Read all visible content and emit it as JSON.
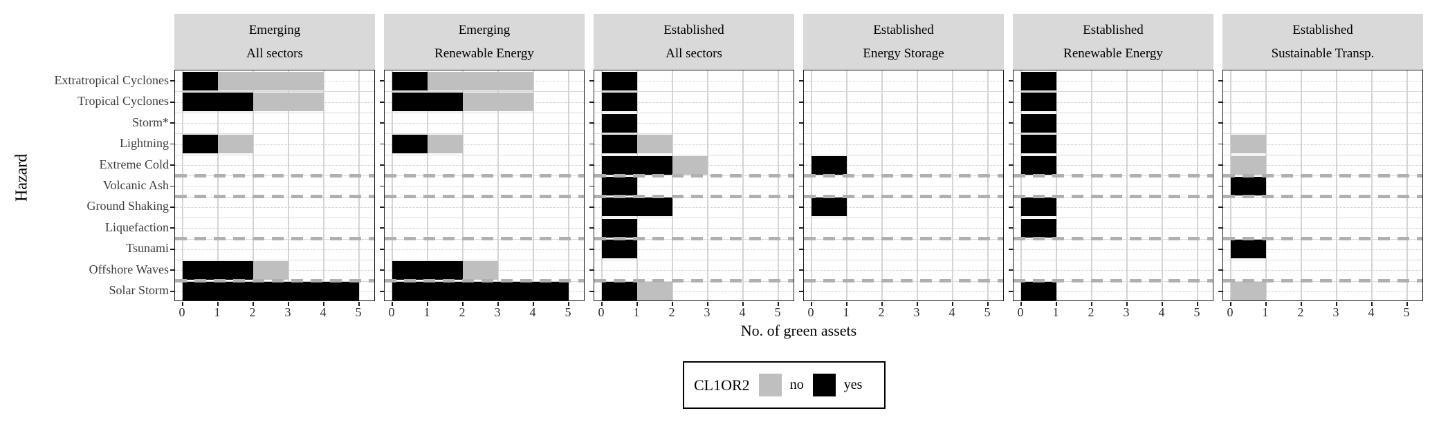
{
  "colors": {
    "bar_yes": "#000000",
    "bar_no": "#bfbfbf",
    "strip_bg": "#d9d9d9",
    "panel_border": "#1c1c1c",
    "grid": "#d4d4d4",
    "dashed_separator": "#b0b0b0",
    "axis_text": "#3d3d3d"
  },
  "chart_data": {
    "type": "bar",
    "orientation": "horizontal",
    "stacked": true,
    "title": "",
    "xlabel": "No. of green assets",
    "ylabel": "Hazard",
    "xlim": [
      0,
      5
    ],
    "x_ticks": [
      0,
      1,
      2,
      3,
      4,
      5
    ],
    "grid": true,
    "categories": [
      "Extratropical Cyclones",
      "Tropical Cyclones",
      "Storm*",
      "Lightning",
      "Extreme Cold",
      "Volcanic Ash",
      "Ground Shaking",
      "Liquefaction",
      "Tsunami",
      "Offshore Waves",
      "Solar Storm"
    ],
    "separators_after_categories": [
      "Extreme Cold",
      "Volcanic Ash",
      "Liquefaction",
      "Offshore Waves"
    ],
    "legend": {
      "title": "CL1OR2",
      "position": "bottom",
      "entries": [
        {
          "label": "no",
          "color": "#bfbfbf"
        },
        {
          "label": "yes",
          "color": "#000000"
        }
      ]
    },
    "facets": [
      {
        "maturity": "Emerging",
        "sector": "All sectors",
        "series": [
          {
            "name": "yes",
            "values": [
              1,
              2,
              0,
              1,
              0,
              0,
              0,
              0,
              0,
              2,
              5
            ]
          },
          {
            "name": "no",
            "values": [
              3,
              2,
              0,
              1,
              0,
              0,
              0,
              0,
              0,
              1,
              0
            ]
          }
        ]
      },
      {
        "maturity": "Emerging",
        "sector": "Renewable Energy",
        "series": [
          {
            "name": "yes",
            "values": [
              1,
              2,
              0,
              1,
              0,
              0,
              0,
              0,
              0,
              2,
              5
            ]
          },
          {
            "name": "no",
            "values": [
              3,
              2,
              0,
              1,
              0,
              0,
              0,
              0,
              0,
              1,
              0
            ]
          }
        ]
      },
      {
        "maturity": "Established",
        "sector": "All sectors",
        "series": [
          {
            "name": "yes",
            "values": [
              1,
              1,
              1,
              1,
              2,
              1,
              2,
              1,
              1,
              0,
              1
            ]
          },
          {
            "name": "no",
            "values": [
              0,
              0,
              0,
              1,
              1,
              0,
              0,
              0,
              0,
              0,
              1
            ]
          }
        ]
      },
      {
        "maturity": "Established",
        "sector": "Energy Storage",
        "series": [
          {
            "name": "yes",
            "values": [
              0,
              0,
              0,
              0,
              1,
              0,
              1,
              0,
              0,
              0,
              0
            ]
          },
          {
            "name": "no",
            "values": [
              0,
              0,
              0,
              0,
              0,
              0,
              0,
              0,
              0,
              0,
              0
            ]
          }
        ]
      },
      {
        "maturity": "Established",
        "sector": "Renewable Energy",
        "series": [
          {
            "name": "yes",
            "values": [
              1,
              1,
              1,
              1,
              1,
              0,
              1,
              1,
              0,
              0,
              1
            ]
          },
          {
            "name": "no",
            "values": [
              0,
              0,
              0,
              0,
              0,
              0,
              0,
              0,
              0,
              0,
              0
            ]
          }
        ]
      },
      {
        "maturity": "Established",
        "sector": "Sustainable Transp.",
        "series": [
          {
            "name": "yes",
            "values": [
              0,
              0,
              0,
              0,
              0,
              1,
              0,
              0,
              1,
              0,
              0
            ]
          },
          {
            "name": "no",
            "values": [
              0,
              0,
              0,
              1,
              1,
              0,
              0,
              0,
              0,
              0,
              1
            ]
          }
        ]
      }
    ]
  }
}
